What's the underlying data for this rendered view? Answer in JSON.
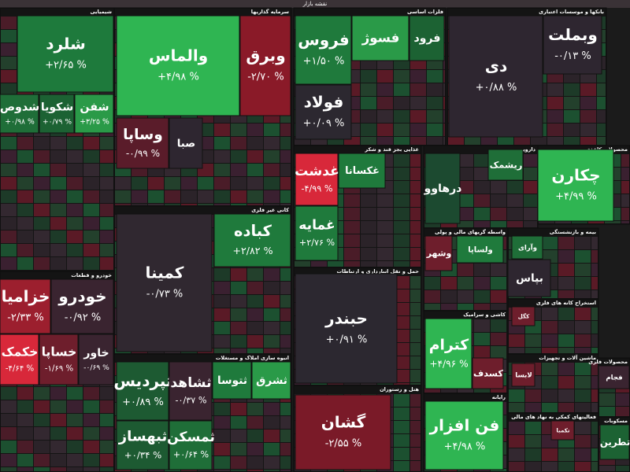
{
  "title": "نقشه بازار",
  "sectors": [
    {
      "label": "شیمیایی",
      "tiles": [
        {
          "name": "شلرد",
          "change": "+۲/۶۵ %",
          "color": "#1e7a3c"
        },
        {
          "name": "شدوص",
          "change": "+۰/۹۸ %",
          "color": "#1f6e38"
        },
        {
          "name": "شکویا",
          "change": "+۰/۷۹ %",
          "color": "#1c6233"
        },
        {
          "name": "شفن",
          "change": "+۳/۲۵ %",
          "color": "#2a9a48"
        }
      ]
    },
    {
      "label": "خودرو و قطعات",
      "tiles": [
        {
          "name": "خزامیا",
          "change": "-۲/۳۳ %",
          "color": "#9c1f2e"
        },
        {
          "name": "خودرو",
          "change": "-۰/۹۲ %",
          "color": "#3a2430"
        },
        {
          "name": "خکمک",
          "change": "-۴/۶۴ %",
          "color": "#d8283a"
        },
        {
          "name": "خساپا",
          "change": "-۱/۶۹ %",
          "color": "#6e1e2c"
        },
        {
          "name": "خاور",
          "change": "-۰/۶۹ %",
          "color": "#3a2430"
        }
      ]
    },
    {
      "label": "سرمایه گذاریها",
      "tiles": [
        {
          "name": "والماس",
          "change": "+۴/۹۸ %",
          "color": "#2fb552"
        },
        {
          "name": "وبرق",
          "change": "-۲/۷۰ %",
          "color": "#8a1a28"
        },
        {
          "name": "وساپا",
          "change": "-۰/۹۹ %",
          "color": "#5a1c2a"
        },
        {
          "name": "صبا",
          "change": "",
          "color": "#2e2630"
        }
      ]
    },
    {
      "label": "کانی غیر فلزی",
      "tiles": [
        {
          "name": "کمینا",
          "change": "-۰/۷۳ %",
          "color": "#302830"
        },
        {
          "name": "کباده",
          "change": "+۲/۸۲ %",
          "color": "#1f7a3c"
        }
      ]
    },
    {
      "label": "انبوه سازی املاک و مستغلات",
      "tiles": [
        {
          "name": "ثپردیس",
          "change": "+۰/۸۹ %",
          "color": "#1d5a32"
        },
        {
          "name": "ثشاهد",
          "change": "-۰/۳۷ %",
          "color": "#3a2430"
        },
        {
          "name": "ثتوسا",
          "change": "",
          "color": "#1f7a3c"
        },
        {
          "name": "ثشرق",
          "change": "",
          "color": "#2a9a48"
        },
        {
          "name": "ثبهساز",
          "change": "+۰/۳۴ %",
          "color": "#1d5a32"
        },
        {
          "name": "ثمسکن",
          "change": "+۰/۶۴ %",
          "color": "#1f6e38"
        }
      ]
    },
    {
      "label": "فلزات اساسی",
      "tiles": [
        {
          "name": "فروس",
          "change": "+۱/۵۰ %",
          "color": "#1f7a3c"
        },
        {
          "name": "فسوژ",
          "change": "",
          "color": "#2a9a48"
        },
        {
          "name": "فرود",
          "change": "",
          "color": "#1c6233"
        },
        {
          "name": "فولاد",
          "change": "+۰/۰۹ %",
          "color": "#2c2830"
        }
      ]
    },
    {
      "label": "بانکها و موسسات اعتباری",
      "tiles": [
        {
          "name": "دی",
          "change": "+۰/۸۸ %",
          "color": "#2e2630"
        },
        {
          "name": "وبملت",
          "change": "-۰/۱۳ %",
          "color": "#2e2630"
        }
      ]
    },
    {
      "label": "غذایی بجز قند و شکر",
      "tiles": [
        {
          "name": "غدشت",
          "change": "-۴/۹۹ %",
          "color": "#d8283a"
        },
        {
          "name": "غکسانا",
          "change": "",
          "color": "#1f7a3c"
        },
        {
          "name": "غمایه",
          "change": "+۲/۷۶ %",
          "color": "#1f7a3c"
        }
      ]
    },
    {
      "label": "دارویی",
      "tiles": [
        {
          "name": "درهاوو",
          "change": "",
          "color": "#1c4a30"
        },
        {
          "name": "ریشمک",
          "change": "",
          "color": "#1f6e38"
        }
      ]
    },
    {
      "label": "محصولات کاغذی",
      "tiles": [
        {
          "name": "چکارن",
          "change": "+۴/۹۹ %",
          "color": "#2fb552"
        }
      ]
    },
    {
      "label": "حمل و نقل انبارداری و ارتباطات",
      "tiles": [
        {
          "name": "حبندر",
          "change": "+۰/۹۱ %",
          "color": "#2c2830"
        }
      ]
    },
    {
      "label": "هتل و رستوران",
      "tiles": [
        {
          "name": "گشان",
          "change": "-۲/۵۵ %",
          "color": "#7a1a28"
        }
      ]
    },
    {
      "label": "واسطه گریهای مالی و پولی",
      "tiles": [
        {
          "name": "وشهر",
          "change": "",
          "color": "#6e1e2c"
        },
        {
          "name": "ولساپا",
          "change": "",
          "color": "#1f7a3c"
        }
      ]
    },
    {
      "label": "کاشی و سرامیک",
      "tiles": [
        {
          "name": "کترام",
          "change": "+۴/۹۶ %",
          "color": "#2fb552"
        },
        {
          "name": "کسدف",
          "change": "",
          "color": "#6e1e2c"
        }
      ]
    },
    {
      "label": "رایانه",
      "tiles": [
        {
          "name": "فن افزار",
          "change": "+۴/۹۸ %",
          "color": "#2fb552"
        }
      ]
    },
    {
      "label": "بیمه و بازنشستگی",
      "tiles": [
        {
          "name": "بپاس",
          "change": "",
          "color": "#2e2630"
        },
        {
          "name": "وآرای",
          "change": "",
          "color": "#1f6e38"
        }
      ]
    },
    {
      "label": "استخراج کانه های فلزی",
      "tiles": [
        {
          "name": "کگل",
          "change": "",
          "color": "#6e1e2c"
        }
      ]
    },
    {
      "label": "ماشین آلات و تجهیزات",
      "tiles": [
        {
          "name": "لابسا",
          "change": "",
          "color": "#6e1e2c"
        }
      ]
    },
    {
      "label": "فعالیتهای کمکی به نهاد های مالی",
      "tiles": [
        {
          "name": "تکمبا",
          "change": "",
          "color": "#6e1e2c"
        }
      ]
    },
    {
      "label": "محصولات فلزی",
      "tiles": [
        {
          "name": "فجام",
          "change": "",
          "color": "#3a2430"
        }
      ]
    },
    {
      "label": "مسکوبات",
      "tiles": [
        {
          "name": "تطرین",
          "change": "",
          "color": "#1c6233"
        }
      ]
    }
  ]
}
